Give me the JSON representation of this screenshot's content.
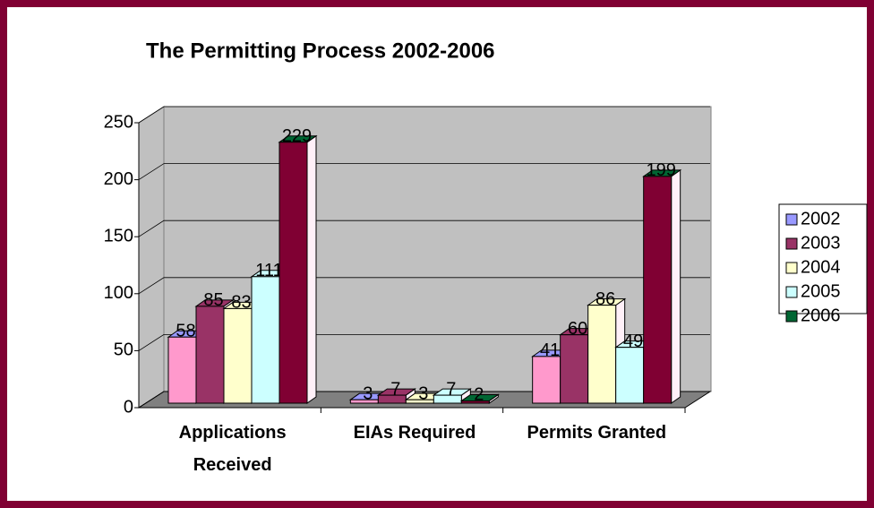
{
  "chart_data": {
    "type": "bar3d",
    "title": "The Permitting Process 2002-2006",
    "categories": [
      "Applications Received",
      "EIAs Required",
      "Permits Granted"
    ],
    "series": [
      {
        "name": "2002",
        "color": "#9999ff",
        "face_color": "#ff99cc",
        "values": [
          58,
          3,
          41
        ]
      },
      {
        "name": "2003",
        "color": "#993366",
        "face_color": "#993366",
        "values": [
          85,
          7,
          60
        ]
      },
      {
        "name": "2004",
        "color": "#ffffcc",
        "face_color": "#ffffcc",
        "values": [
          83,
          3,
          86
        ]
      },
      {
        "name": "2005",
        "color": "#ccffff",
        "face_color": "#ccffff",
        "values": [
          111,
          7,
          49
        ]
      },
      {
        "name": "2006",
        "color": "#006633",
        "face_color": "#800033",
        "values": [
          229,
          2,
          199
        ]
      }
    ],
    "ylim": [
      0,
      250
    ],
    "yticks": [
      0,
      50,
      100,
      150,
      200,
      250
    ],
    "grid": true,
    "legend": "right"
  }
}
